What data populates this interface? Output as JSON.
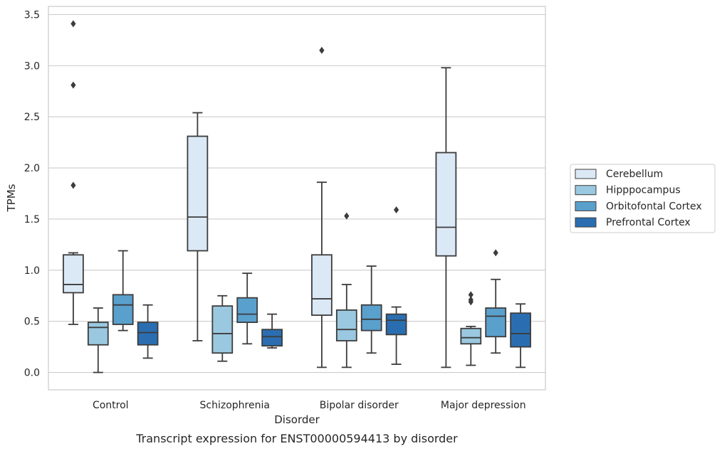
{
  "chart_data": {
    "type": "boxplot",
    "title": "",
    "caption": "Transcript expression for ENST00000594413 by disorder",
    "xlabel": "Disorder",
    "ylabel": "TPMs",
    "ylim": [
      -0.17,
      3.58
    ],
    "yticks": [
      0.0,
      0.5,
      1.0,
      1.5,
      2.0,
      2.5,
      3.0,
      3.5
    ],
    "ytick_labels": [
      "0.0",
      "0.5",
      "1.0",
      "1.5",
      "2.0",
      "2.5",
      "3.0",
      "3.5"
    ],
    "grid": true,
    "legend_position": "right",
    "categories": [
      "Control",
      "Schizophrenia",
      "Bipolar disorder",
      "Major depression"
    ],
    "series": [
      {
        "name": "Cerebellum",
        "color": "#dbe9f6",
        "boxes": [
          {
            "whislo": 0.47,
            "q1": 0.78,
            "med": 0.86,
            "q3": 1.15,
            "whishi": 1.17,
            "fliers": [
              1.83,
              2.81,
              3.41
            ]
          },
          {
            "whislo": 0.31,
            "q1": 1.19,
            "med": 1.52,
            "q3": 2.31,
            "whishi": 2.54,
            "fliers": []
          },
          {
            "whislo": 0.05,
            "q1": 0.56,
            "med": 0.72,
            "q3": 1.15,
            "whishi": 1.86,
            "fliers": [
              3.15
            ]
          },
          {
            "whislo": 0.05,
            "q1": 1.14,
            "med": 1.42,
            "q3": 2.15,
            "whishi": 2.98,
            "fliers": []
          }
        ]
      },
      {
        "name": "Hipppocampus",
        "color": "#9ac8e0",
        "boxes": [
          {
            "whislo": 0.0,
            "q1": 0.27,
            "med": 0.44,
            "q3": 0.49,
            "whishi": 0.63,
            "fliers": []
          },
          {
            "whislo": 0.11,
            "q1": 0.19,
            "med": 0.38,
            "q3": 0.65,
            "whishi": 0.75,
            "fliers": []
          },
          {
            "whislo": 0.05,
            "q1": 0.31,
            "med": 0.42,
            "q3": 0.61,
            "whishi": 0.86,
            "fliers": [
              1.53
            ]
          },
          {
            "whislo": 0.07,
            "q1": 0.28,
            "med": 0.34,
            "q3": 0.43,
            "whishi": 0.45,
            "fliers": [
              0.69,
              0.71,
              0.76
            ]
          }
        ]
      },
      {
        "name": "Orbitofontal Cortex",
        "color": "#5aa0cd",
        "boxes": [
          {
            "whislo": 0.41,
            "q1": 0.47,
            "med": 0.66,
            "q3": 0.76,
            "whishi": 1.19,
            "fliers": []
          },
          {
            "whislo": 0.28,
            "q1": 0.49,
            "med": 0.57,
            "q3": 0.73,
            "whishi": 0.97,
            "fliers": []
          },
          {
            "whislo": 0.19,
            "q1": 0.41,
            "med": 0.52,
            "q3": 0.66,
            "whishi": 1.04,
            "fliers": []
          },
          {
            "whislo": 0.19,
            "q1": 0.35,
            "med": 0.55,
            "q3": 0.63,
            "whishi": 0.91,
            "fliers": [
              1.17
            ]
          }
        ]
      },
      {
        "name": "Prefrontal Cortex",
        "color": "#2a6eb1",
        "boxes": [
          {
            "whislo": 0.14,
            "q1": 0.27,
            "med": 0.39,
            "q3": 0.49,
            "whishi": 0.66,
            "fliers": []
          },
          {
            "whislo": 0.24,
            "q1": 0.26,
            "med": 0.35,
            "q3": 0.42,
            "whishi": 0.57,
            "fliers": []
          },
          {
            "whislo": 0.08,
            "q1": 0.37,
            "med": 0.51,
            "q3": 0.57,
            "whishi": 0.64,
            "fliers": [
              1.59
            ]
          },
          {
            "whislo": 0.05,
            "q1": 0.25,
            "med": 0.38,
            "q3": 0.58,
            "whishi": 0.67,
            "fliers": []
          }
        ]
      }
    ],
    "line_color": "#3c3c3c",
    "grid_color": "#cccccc",
    "frame_color": "#cccccc"
  }
}
